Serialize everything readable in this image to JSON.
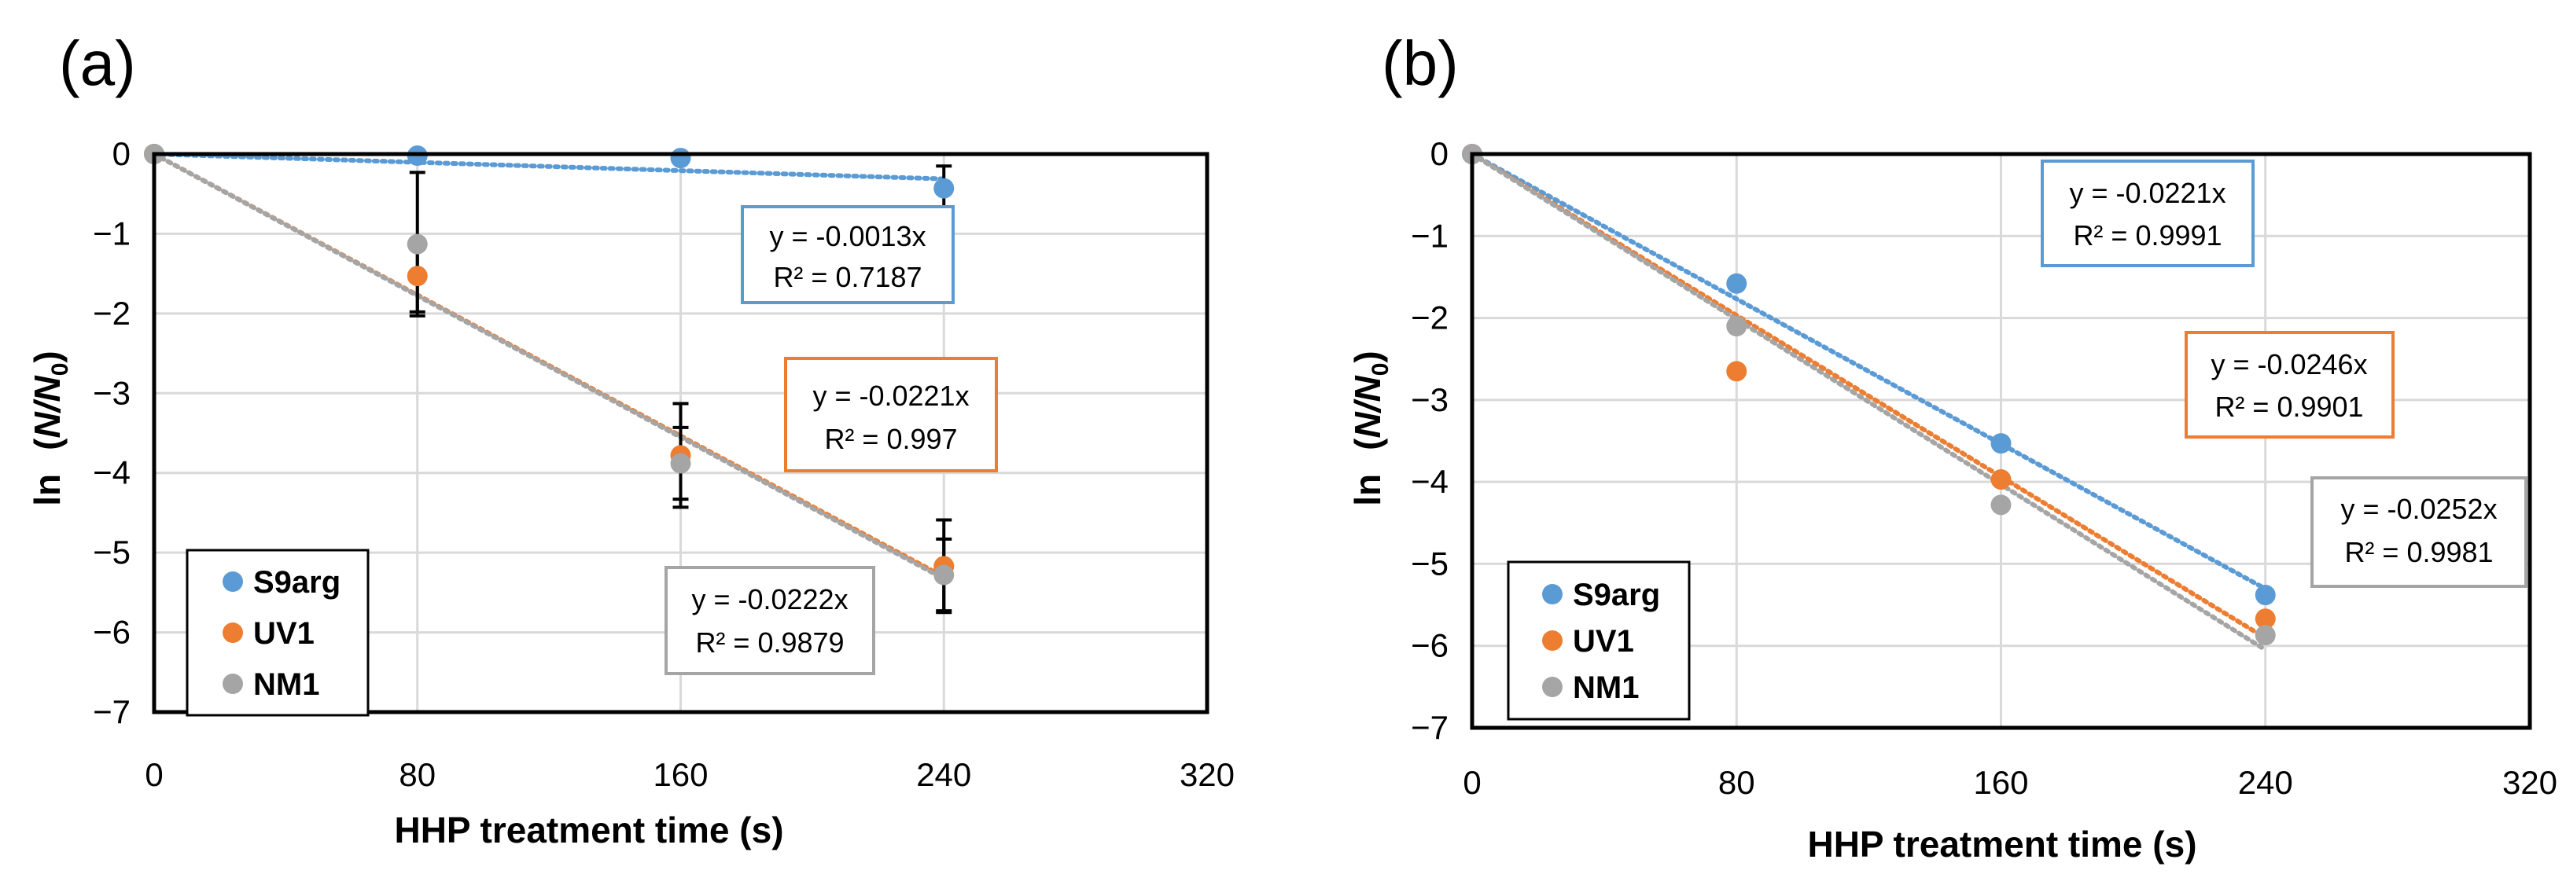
{
  "figure": {
    "panels": [
      "(a)",
      "(b)"
    ]
  },
  "colors": {
    "S9arg": "#5b9bd5",
    "UV1": "#ed7d31",
    "NM1": "#a5a5a5",
    "grid": "#d9d9d9",
    "axis": "#000000"
  },
  "chart_data": [
    {
      "panel": "(a)",
      "type": "scatter",
      "xlabel": "HHP treatment time (s)",
      "ylabel_prefix": "ln",
      "ylabel_fraction": "N/N",
      "ylabel_sub": "0",
      "xlim": [
        0,
        320
      ],
      "ylim": [
        -7,
        0
      ],
      "xticks": [
        0,
        80,
        160,
        240,
        320
      ],
      "yticks": [
        0,
        -1,
        -2,
        -3,
        -4,
        -5,
        -6,
        -7
      ],
      "ytick_labels": [
        "0",
        "−1",
        "−2",
        "−3",
        "−4",
        "−5",
        "−6",
        "−7"
      ],
      "grid": true,
      "legend": {
        "position": "bottom-left",
        "entries": [
          "S9arg",
          "UV1",
          "NM1"
        ]
      },
      "series": [
        {
          "name": "S9arg",
          "x": [
            0,
            80,
            160,
            240
          ],
          "y": [
            0,
            -0.02,
            -0.05,
            -0.43
          ],
          "err": [
            0,
            0,
            0,
            0.28
          ],
          "trend_slope": -0.0013,
          "equation": "y = -0.0013x",
          "r2": "R² = 0.7187"
        },
        {
          "name": "UV1",
          "x": [
            0,
            80,
            160,
            240
          ],
          "y": [
            0,
            -1.53,
            -3.78,
            -5.17
          ],
          "err": [
            0,
            0.45,
            0.65,
            0.58
          ],
          "trend_slope": -0.0221,
          "equation": "y = -0.0221x",
          "r2": "R² = 0.997"
        },
        {
          "name": "NM1",
          "x": [
            0,
            80,
            160,
            240
          ],
          "y": [
            0,
            -1.13,
            -3.88,
            -5.28
          ],
          "err": [
            0,
            0.9,
            0.45,
            0.45
          ],
          "trend_slope": -0.0222,
          "equation": "y = -0.0222x",
          "r2": "R² = 0.9879"
        }
      ]
    },
    {
      "panel": "(b)",
      "type": "scatter",
      "xlabel": "HHP treatment time (s)",
      "ylabel_prefix": "ln",
      "ylabel_fraction": "N/N",
      "ylabel_sub": "0",
      "xlim": [
        0,
        320
      ],
      "ylim": [
        -7,
        0
      ],
      "xticks": [
        0,
        80,
        160,
        240,
        320
      ],
      "yticks": [
        0,
        -1,
        -2,
        -3,
        -4,
        -5,
        -6,
        -7
      ],
      "ytick_labels": [
        "0",
        "−1",
        "−2",
        "−3",
        "−4",
        "−5",
        "−6",
        "−7"
      ],
      "grid": true,
      "legend": {
        "position": "bottom-left",
        "entries": [
          "S9arg",
          "UV1",
          "NM1"
        ]
      },
      "series": [
        {
          "name": "S9arg",
          "x": [
            0,
            80,
            160,
            240
          ],
          "y": [
            0,
            -1.58,
            -3.53,
            -5.38
          ],
          "err": [
            0,
            0,
            0,
            0
          ],
          "trend_slope": -0.0221,
          "equation": "y = -0.0221x",
          "r2": "R² = 0.9991"
        },
        {
          "name": "UV1",
          "x": [
            0,
            80,
            160,
            240
          ],
          "y": [
            0,
            -2.65,
            -3.97,
            -5.67
          ],
          "err": [
            0,
            0,
            0,
            0
          ],
          "trend_slope": -0.0246,
          "equation": "y = -0.0246x",
          "r2": "R² = 0.9901"
        },
        {
          "name": "NM1",
          "x": [
            0,
            80,
            160,
            240
          ],
          "y": [
            0,
            -2.1,
            -4.28,
            -5.87
          ],
          "err": [
            0,
            0,
            0,
            0
          ],
          "trend_slope": -0.0252,
          "equation": "y = -0.0252x",
          "r2": "R² = 0.9981"
        }
      ]
    }
  ]
}
